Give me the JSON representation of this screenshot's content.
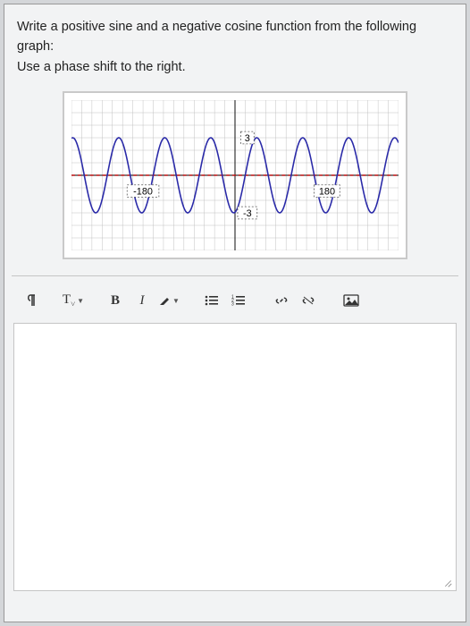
{
  "question": {
    "line1": "Write a positive sine and a negative cosine function from the following graph:",
    "line2": "Use a phase shift to the right."
  },
  "chart": {
    "type": "line",
    "background_color": "#ffffff",
    "grid_color": "#c0c0c0",
    "axis_color": "#333333",
    "xlim": [
      -320,
      320
    ],
    "ylim": [
      -6,
      6
    ],
    "xtick_step": 20,
    "ytick_step": 1,
    "x_labels": [
      {
        "x": -180,
        "text": "-180"
      },
      {
        "x": 180,
        "text": "180"
      }
    ],
    "y_labels": [
      {
        "y": 3,
        "text": "3"
      },
      {
        "y": -3,
        "text": "-3"
      }
    ],
    "curve": {
      "color": "#2a2aa8",
      "stroke_width": 1.6,
      "amplitude": 3,
      "period": 90,
      "phase": 20,
      "xmin": -320,
      "xmax": 320
    },
    "mid_line": {
      "color": "#cc0000",
      "dash": "4,3",
      "y": 0,
      "stroke_width": 1.2
    },
    "label_box": {
      "fill": "#ffffff",
      "stroke": "#555555",
      "dash": "2,2",
      "font_size": 11
    }
  },
  "toolbar": {
    "paragraph": "¶",
    "text_style": "T",
    "bold": "B",
    "italic": "I",
    "highlight": "✎",
    "ul": "bulleted-list",
    "ol": "numbered-list",
    "link": "link",
    "unlink": "unlink",
    "image": "image"
  }
}
